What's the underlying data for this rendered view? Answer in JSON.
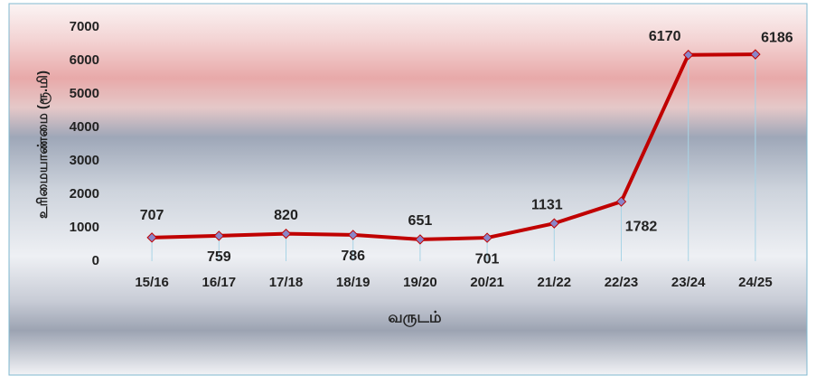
{
  "chart_data": {
    "type": "line",
    "x_label": "வருடம்",
    "y_label": "உரிமையாண்மை (ரூ.மி)",
    "categories": [
      "15/16",
      "16/17",
      "17/18",
      "18/19",
      "19/20",
      "20/21",
      "21/22",
      "22/23",
      "23/24",
      "24/25"
    ],
    "series": [
      {
        "color": "#c00000",
        "values": [
          707,
          759,
          820,
          786,
          651,
          701,
          1131,
          1782,
          6170,
          6186
        ]
      }
    ],
    "ylim": [
      0,
      7000
    ],
    "yticks": [
      0,
      1000,
      2000,
      3000,
      4000,
      5000,
      6000,
      7000
    ]
  }
}
